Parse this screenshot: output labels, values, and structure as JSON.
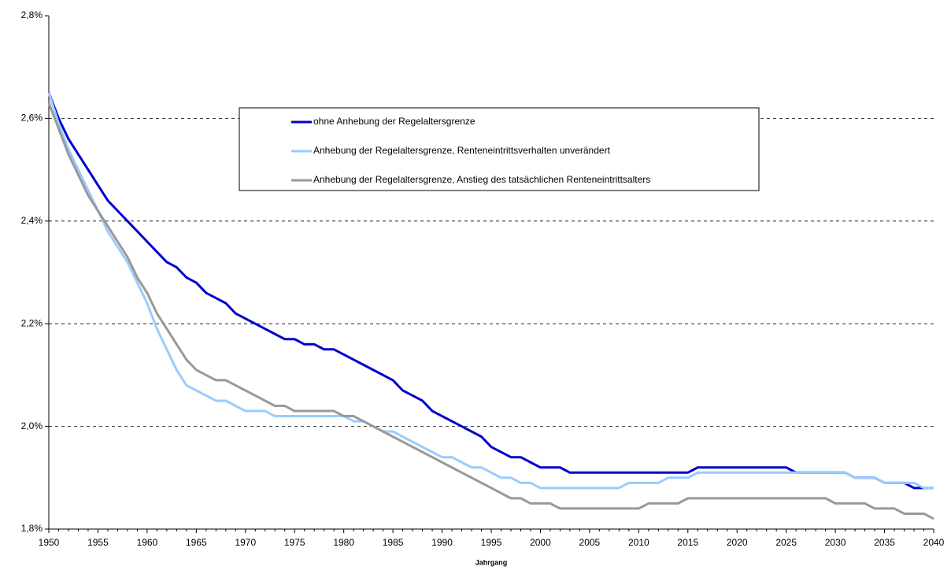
{
  "chart_data": {
    "type": "line",
    "x_label": "Jahrgang",
    "x": [
      1950,
      1951,
      1952,
      1953,
      1954,
      1955,
      1956,
      1957,
      1958,
      1959,
      1960,
      1961,
      1962,
      1963,
      1964,
      1965,
      1966,
      1967,
      1968,
      1969,
      1970,
      1971,
      1972,
      1973,
      1974,
      1975,
      1976,
      1977,
      1978,
      1979,
      1980,
      1981,
      1982,
      1983,
      1984,
      1985,
      1986,
      1987,
      1988,
      1989,
      1990,
      1991,
      1992,
      1993,
      1994,
      1995,
      1996,
      1997,
      1998,
      1999,
      2000,
      2001,
      2002,
      2003,
      2004,
      2005,
      2006,
      2007,
      2008,
      2009,
      2010,
      2011,
      2012,
      2013,
      2014,
      2015,
      2016,
      2017,
      2018,
      2019,
      2020,
      2021,
      2022,
      2023,
      2024,
      2025,
      2026,
      2027,
      2028,
      2029,
      2030,
      2031,
      2032,
      2033,
      2034,
      2035,
      2036,
      2037,
      2038,
      2039,
      2040
    ],
    "series": [
      {
        "name": "ohne Anhebung der Regelaltersgrenze",
        "color": "#0000cc",
        "values": [
          2.65,
          2.6,
          2.56,
          2.53,
          2.5,
          2.47,
          2.44,
          2.42,
          2.4,
          2.38,
          2.36,
          2.34,
          2.32,
          2.31,
          2.29,
          2.28,
          2.26,
          2.25,
          2.24,
          2.22,
          2.21,
          2.2,
          2.19,
          2.18,
          2.17,
          2.17,
          2.16,
          2.16,
          2.15,
          2.15,
          2.14,
          2.13,
          2.12,
          2.11,
          2.1,
          2.09,
          2.07,
          2.06,
          2.05,
          2.03,
          2.02,
          2.01,
          2,
          1.99,
          1.98,
          1.96,
          1.95,
          1.94,
          1.94,
          1.93,
          1.92,
          1.92,
          1.92,
          1.91,
          1.91,
          1.91,
          1.91,
          1.91,
          1.91,
          1.91,
          1.91,
          1.91,
          1.91,
          1.91,
          1.91,
          1.91,
          1.92,
          1.92,
          1.92,
          1.92,
          1.92,
          1.92,
          1.92,
          1.92,
          1.92,
          1.92,
          1.91,
          1.91,
          1.91,
          1.91,
          1.91,
          1.91,
          1.9,
          1.9,
          1.9,
          1.89,
          1.89,
          1.89,
          1.88,
          1.88,
          1.88
        ]
      },
      {
        "name": "Anhebung der Regelaltersgrenze, Renteneintrittsverhalten unverändert",
        "color": "#99ccff",
        "values": [
          2.65,
          2.59,
          2.54,
          2.5,
          2.46,
          2.42,
          2.38,
          2.35,
          2.32,
          2.28,
          2.24,
          2.19,
          2.15,
          2.11,
          2.08,
          2.07,
          2.06,
          2.05,
          2.05,
          2.04,
          2.03,
          2.03,
          2.03,
          2.02,
          2.02,
          2.02,
          2.02,
          2.02,
          2.02,
          2.02,
          2.02,
          2.01,
          2.01,
          2,
          1.99,
          1.99,
          1.98,
          1.97,
          1.96,
          1.95,
          1.94,
          1.94,
          1.93,
          1.92,
          1.92,
          1.91,
          1.9,
          1.9,
          1.89,
          1.89,
          1.88,
          1.88,
          1.88,
          1.88,
          1.88,
          1.88,
          1.88,
          1.88,
          1.88,
          1.89,
          1.89,
          1.89,
          1.89,
          1.9,
          1.9,
          1.9,
          1.91,
          1.91,
          1.91,
          1.91,
          1.91,
          1.91,
          1.91,
          1.91,
          1.91,
          1.91,
          1.91,
          1.91,
          1.91,
          1.91,
          1.91,
          1.91,
          1.9,
          1.9,
          1.9,
          1.89,
          1.89,
          1.89,
          1.89,
          1.88,
          1.88
        ]
      },
      {
        "name": "Anhebung der Regelaltersgrenze, Anstieg des tatsächlichen Renteneintrittsalters",
        "color": "#999999",
        "values": [
          2.63,
          2.58,
          2.53,
          2.49,
          2.45,
          2.42,
          2.39,
          2.36,
          2.33,
          2.29,
          2.26,
          2.22,
          2.19,
          2.16,
          2.13,
          2.11,
          2.1,
          2.09,
          2.09,
          2.08,
          2.07,
          2.06,
          2.05,
          2.04,
          2.04,
          2.03,
          2.03,
          2.03,
          2.03,
          2.03,
          2.02,
          2.02,
          2.01,
          2,
          1.99,
          1.98,
          1.97,
          1.96,
          1.95,
          1.94,
          1.93,
          1.92,
          1.91,
          1.9,
          1.89,
          1.88,
          1.87,
          1.86,
          1.86,
          1.85,
          1.85,
          1.85,
          1.84,
          1.84,
          1.84,
          1.84,
          1.84,
          1.84,
          1.84,
          1.84,
          1.84,
          1.85,
          1.85,
          1.85,
          1.85,
          1.86,
          1.86,
          1.86,
          1.86,
          1.86,
          1.86,
          1.86,
          1.86,
          1.86,
          1.86,
          1.86,
          1.86,
          1.86,
          1.86,
          1.86,
          1.85,
          1.85,
          1.85,
          1.85,
          1.84,
          1.84,
          1.84,
          1.83,
          1.83,
          1.83,
          1.82
        ]
      }
    ],
    "xlim": [
      1950,
      2040
    ],
    "xticks": [
      1950,
      1955,
      1960,
      1965,
      1970,
      1975,
      1980,
      1985,
      1990,
      1995,
      2000,
      2005,
      2010,
      2015,
      2020,
      2025,
      2030,
      2035,
      2040
    ],
    "ylim": [
      1.8,
      2.8
    ],
    "yticks": [
      {
        "value": 1.8,
        "label": "1,8%"
      },
      {
        "value": 2.0,
        "label": "2,0%"
      },
      {
        "value": 2.2,
        "label": "2,2%"
      },
      {
        "value": 2.4,
        "label": "2,4%"
      },
      {
        "value": 2.6,
        "label": "2,6%"
      },
      {
        "value": 2.8,
        "label": "2,8%"
      }
    ],
    "grid": true,
    "legend": "upper center"
  }
}
